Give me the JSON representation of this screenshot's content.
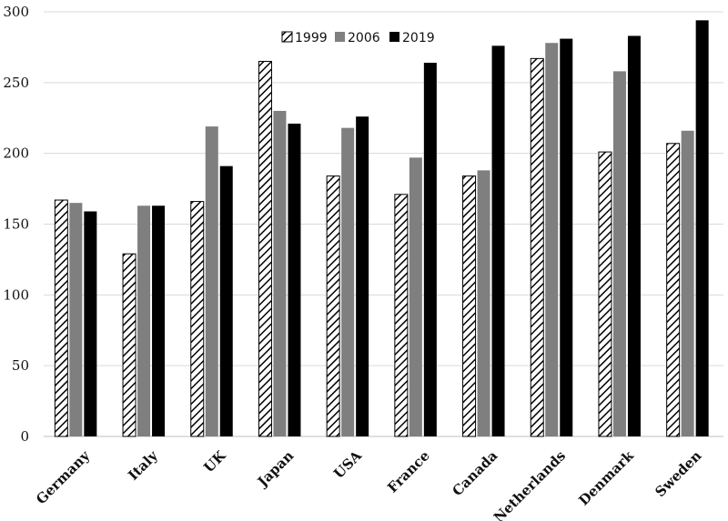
{
  "chart_data": {
    "type": "bar",
    "title": "",
    "xlabel": "",
    "ylabel": "",
    "ylim": [
      0,
      300
    ],
    "yticks": [
      0,
      50,
      100,
      150,
      200,
      250,
      300
    ],
    "grid": true,
    "legend_position": "top-center",
    "categories": [
      "Germany",
      "Italy",
      "UK",
      "Japan",
      "USA",
      "France",
      "Canada",
      "Netherlands",
      "Denmark",
      "Sweden"
    ],
    "series": [
      {
        "name": "1999",
        "pattern": "hatched",
        "color": "#000000",
        "values": [
          167,
          129,
          166,
          265,
          184,
          171,
          184,
          267,
          201,
          207
        ]
      },
      {
        "name": "2006",
        "pattern": "solid",
        "color": "#7f7f7f",
        "values": [
          165,
          163,
          219,
          230,
          218,
          197,
          188,
          278,
          258,
          216
        ]
      },
      {
        "name": "2019",
        "pattern": "solid",
        "color": "#000000",
        "values": [
          159,
          163,
          191,
          221,
          226,
          264,
          276,
          281,
          283,
          294
        ]
      }
    ]
  }
}
